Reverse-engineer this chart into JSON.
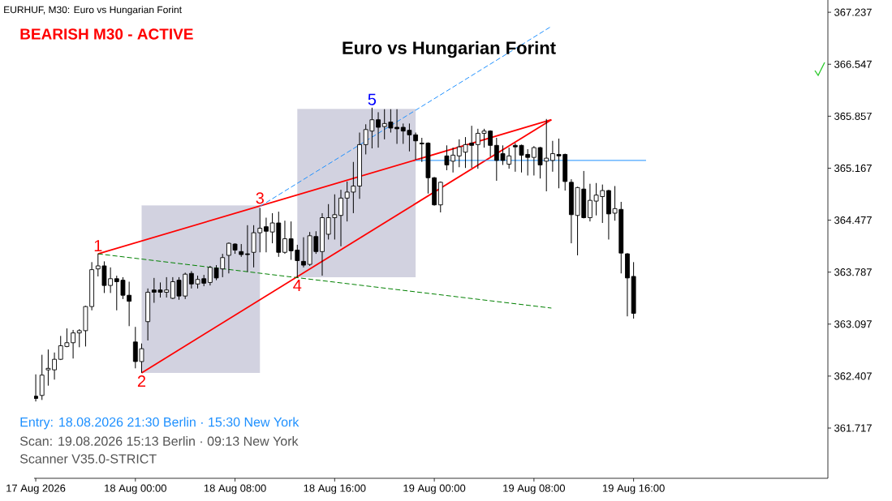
{
  "chart_data": {
    "type": "candlestick",
    "title": "Euro vs Hungarian Forint",
    "subtitle": "BEARISH M30 - ACTIVE",
    "x": [
      "2026-08-17T16:00",
      "2026-08-17T16:30",
      "2026-08-17T17:00",
      "2026-08-17T17:30",
      "2026-08-17T18:00",
      "2026-08-17T18:30",
      "2026-08-17T19:00",
      "2026-08-17T19:30",
      "2026-08-17T20:00",
      "2026-08-17T20:30",
      "2026-08-17T21:00",
      "2026-08-17T21:30",
      "2026-08-17T22:00",
      "2026-08-17T22:30",
      "2026-08-17T23:00",
      "2026-08-17T23:30",
      "2026-08-18T00:00",
      "2026-08-18T00:30",
      "2026-08-18T01:00",
      "2026-08-18T01:30",
      "2026-08-18T02:00",
      "2026-08-18T02:30",
      "2026-08-18T03:00",
      "2026-08-18T03:30",
      "2026-08-18T04:00",
      "2026-08-18T04:30",
      "2026-08-18T05:00",
      "2026-08-18T05:30",
      "2026-08-18T06:00",
      "2026-08-18T06:30",
      "2026-08-18T07:00",
      "2026-08-18T07:30",
      "2026-08-18T08:00",
      "2026-08-18T08:30",
      "2026-08-18T09:00",
      "2026-08-18T09:30",
      "2026-08-18T10:00",
      "2026-08-18T10:30",
      "2026-08-18T11:00",
      "2026-08-18T11:30",
      "2026-08-18T12:00",
      "2026-08-18T12:30",
      "2026-08-18T13:00",
      "2026-08-18T13:30",
      "2026-08-18T14:00",
      "2026-08-18T14:30",
      "2026-08-18T15:00",
      "2026-08-18T15:30",
      "2026-08-18T16:00",
      "2026-08-18T16:30",
      "2026-08-18T17:00",
      "2026-08-18T17:30",
      "2026-08-18T18:00",
      "2026-08-18T18:30",
      "2026-08-18T19:00",
      "2026-08-18T19:30",
      "2026-08-18T20:00",
      "2026-08-18T20:30",
      "2026-08-18T21:00",
      "2026-08-18T21:30",
      "2026-08-18T22:00",
      "2026-08-18T22:30",
      "2026-08-18T23:00",
      "2026-08-18T23:30",
      "2026-08-19T00:00",
      "2026-08-19T00:30",
      "2026-08-19T01:00",
      "2026-08-19T01:30",
      "2026-08-19T02:00",
      "2026-08-19T02:30",
      "2026-08-19T03:00",
      "2026-08-19T03:30",
      "2026-08-19T04:00",
      "2026-08-19T04:30",
      "2026-08-19T05:00",
      "2026-08-19T05:30",
      "2026-08-19T06:00",
      "2026-08-19T06:30",
      "2026-08-19T07:00",
      "2026-08-19T07:30",
      "2026-08-19T08:00",
      "2026-08-19T08:30",
      "2026-08-19T09:00",
      "2026-08-19T09:30",
      "2026-08-19T10:00",
      "2026-08-19T10:30",
      "2026-08-19T11:00",
      "2026-08-19T11:30",
      "2026-08-19T12:00",
      "2026-08-19T12:30",
      "2026-08-19T13:00",
      "2026-08-19T13:30",
      "2026-08-19T14:00",
      "2026-08-19T14:30",
      "2026-08-19T15:00",
      "2026-08-19T15:30",
      "2026-08-19T16:00"
    ],
    "ohlc": [
      [
        362.14,
        362.43,
        362.07,
        362.11
      ],
      [
        362.15,
        362.69,
        362.09,
        362.42
      ],
      [
        362.49,
        362.76,
        362.28,
        362.51
      ],
      [
        362.49,
        362.72,
        362.36,
        362.63
      ],
      [
        362.63,
        362.94,
        362.62,
        362.81
      ],
      [
        362.8,
        363.04,
        362.79,
        362.85
      ],
      [
        362.85,
        363.02,
        362.64,
        362.98
      ],
      [
        362.98,
        363.03,
        362.79,
        363.01
      ],
      [
        363.01,
        363.34,
        362.8,
        363.33
      ],
      [
        363.33,
        363.92,
        363.28,
        363.82
      ],
      [
        363.83,
        364.03,
        363.73,
        363.87
      ],
      [
        363.87,
        363.93,
        363.51,
        363.61
      ],
      [
        363.61,
        363.85,
        363.51,
        363.7
      ],
      [
        363.7,
        363.74,
        363.28,
        363.66
      ],
      [
        363.68,
        363.72,
        363.43,
        363.48
      ],
      [
        363.48,
        363.66,
        363.07,
        363.4
      ],
      [
        362.86,
        363.06,
        362.51,
        362.6
      ],
      [
        362.6,
        362.84,
        362.45,
        362.77
      ],
      [
        363.13,
        363.57,
        362.88,
        363.52
      ],
      [
        363.55,
        363.71,
        363.38,
        363.52
      ],
      [
        363.55,
        363.65,
        363.45,
        363.52
      ],
      [
        363.52,
        363.72,
        363.45,
        363.55
      ],
      [
        363.44,
        363.72,
        363.43,
        363.66
      ],
      [
        363.68,
        363.72,
        363.42,
        363.47
      ],
      [
        363.47,
        363.78,
        363.43,
        363.76
      ],
      [
        363.77,
        363.8,
        363.57,
        363.63
      ],
      [
        363.63,
        363.74,
        363.57,
        363.69
      ],
      [
        363.7,
        363.75,
        363.6,
        363.64
      ],
      [
        363.65,
        363.87,
        363.61,
        363.85
      ],
      [
        363.84,
        363.88,
        363.68,
        363.71
      ],
      [
        363.83,
        364.03,
        363.72,
        363.98
      ],
      [
        364.01,
        364.18,
        363.77,
        364.17
      ],
      [
        364.16,
        364.17,
        364.03,
        364.08
      ],
      [
        364.06,
        364.16,
        363.99,
        364.02
      ],
      [
        364.03,
        364.41,
        363.79,
        364.02
      ],
      [
        364.05,
        364.41,
        363.85,
        364.31
      ],
      [
        364.31,
        364.64,
        364.05,
        364.37
      ],
      [
        364.39,
        364.51,
        364.05,
        364.33
      ],
      [
        364.32,
        364.57,
        364.17,
        364.44
      ],
      [
        364.44,
        364.59,
        363.99,
        364.05
      ],
      [
        364.05,
        364.47,
        364.03,
        364.23
      ],
      [
        364.23,
        364.46,
        363.95,
        364.07
      ],
      [
        364.08,
        364.15,
        363.72,
        363.94
      ],
      [
        363.93,
        364.25,
        363.85,
        363.88
      ],
      [
        363.89,
        364.32,
        363.87,
        364.27
      ],
      [
        364.26,
        364.33,
        364.03,
        364.06
      ],
      [
        364.06,
        364.57,
        363.74,
        364.51
      ],
      [
        364.29,
        364.69,
        364.22,
        364.51
      ],
      [
        364.51,
        364.82,
        364.22,
        364.55
      ],
      [
        364.54,
        364.88,
        364.13,
        364.77
      ],
      [
        364.77,
        364.99,
        364.46,
        364.85
      ],
      [
        364.85,
        365.25,
        364.57,
        364.93
      ],
      [
        364.93,
        365.64,
        364.76,
        365.48
      ],
      [
        365.48,
        365.75,
        365.35,
        365.68
      ],
      [
        365.66,
        365.97,
        365.43,
        365.81
      ],
      [
        365.81,
        365.91,
        365.44,
        365.71
      ],
      [
        365.72,
        365.95,
        365.55,
        365.76
      ],
      [
        365.78,
        365.95,
        365.64,
        365.7
      ],
      [
        365.71,
        365.95,
        365.49,
        365.69
      ],
      [
        365.71,
        365.76,
        365.49,
        365.66
      ],
      [
        365.67,
        365.76,
        365.39,
        365.61
      ],
      [
        365.61,
        365.64,
        365.28,
        365.53
      ],
      [
        365.5,
        365.57,
        365.25,
        365.49
      ],
      [
        365.5,
        365.51,
        364.83,
        365.04
      ],
      [
        365.04,
        365.05,
        364.67,
        364.68
      ],
      [
        364.68,
        364.99,
        364.58,
        364.98
      ],
      [
        365.33,
        365.47,
        365.14,
        365.21
      ],
      [
        365.26,
        365.44,
        365.11,
        365.34
      ],
      [
        365.33,
        365.55,
        365.18,
        365.45
      ],
      [
        365.38,
        365.58,
        365.17,
        365.48
      ],
      [
        365.5,
        365.73,
        365.17,
        365.47
      ],
      [
        365.48,
        365.69,
        365.16,
        365.63
      ],
      [
        365.63,
        365.69,
        365.44,
        365.66
      ],
      [
        365.66,
        365.67,
        365.32,
        365.47
      ],
      [
        365.47,
        365.57,
        365.0,
        365.27
      ],
      [
        365.36,
        365.47,
        365.21,
        365.27
      ],
      [
        365.22,
        365.44,
        365.16,
        365.33
      ],
      [
        365.47,
        365.5,
        365.12,
        365.45
      ],
      [
        365.47,
        365.48,
        365.11,
        365.34
      ],
      [
        365.35,
        365.42,
        365.07,
        365.31
      ],
      [
        365.31,
        365.46,
        365.07,
        365.44
      ],
      [
        365.44,
        365.45,
        365.03,
        365.21
      ],
      [
        365.26,
        365.82,
        364.86,
        365.3
      ],
      [
        365.27,
        365.53,
        365.12,
        365.36
      ],
      [
        365.35,
        365.56,
        364.9,
        365.33
      ],
      [
        365.35,
        365.36,
        364.87,
        364.99
      ],
      [
        364.98,
        365.02,
        364.17,
        364.55
      ],
      [
        364.54,
        364.92,
        364.01,
        364.91
      ],
      [
        364.89,
        365.13,
        364.5,
        364.51
      ],
      [
        364.51,
        364.96,
        364.46,
        364.74
      ],
      [
        364.73,
        364.97,
        364.54,
        364.81
      ],
      [
        364.79,
        364.95,
        364.44,
        364.87
      ],
      [
        364.87,
        364.88,
        364.22,
        364.56
      ],
      [
        364.57,
        364.93,
        364.47,
        364.63
      ],
      [
        364.62,
        364.72,
        363.77,
        364.04
      ],
      [
        364.03,
        364.04,
        363.2,
        363.71
      ],
      [
        363.73,
        363.92,
        363.17,
        363.24
      ]
    ],
    "series": [
      {
        "type": "line",
        "color": "#d2d2e0",
        "x": [
          "2026-08-18T00:30",
          "2026-08-18T10:00"
        ],
        "values": [
          364.67,
          364.67
        ],
        "lower": [
          362.45,
          362.45
        ],
        "upper": [
          364.67,
          364.67
        ]
      },
      {
        "type": "line",
        "color": "#d2d2e0",
        "x": [
          "2026-08-18T13:00",
          "2026-08-18T22:30"
        ],
        "values": [
          365.95,
          365.95
        ],
        "lower": [
          363.72,
          363.72
        ],
        "upper": [
          365.95,
          365.95
        ]
      },
      {
        "type": "line",
        "color": "#ff0000",
        "line_style": "solid",
        "x": [
          "2026-08-17T21:00",
          "2026-08-19T09:24"
        ],
        "values": [
          364.03,
          365.81
        ]
      },
      {
        "type": "line",
        "color": "#ff0000",
        "line_style": "solid",
        "x": [
          "2026-08-18T00:30",
          "2026-08-19T09:24"
        ],
        "values": [
          362.45,
          365.81
        ]
      },
      {
        "type": "line",
        "color": "#1e90ff",
        "line_style": "dashed",
        "x": [
          "2026-08-18T10:00",
          "2026-08-19T09:24"
        ],
        "values": [
          364.66,
          367.05
        ]
      },
      {
        "type": "line",
        "color": "#008000",
        "line_style": "dashed",
        "x": [
          "2026-08-17T21:00",
          "2026-08-19T09:24"
        ],
        "values": [
          364.03,
          363.31
        ]
      },
      {
        "type": "line",
        "color": "#1e90ff",
        "line_style": "solid",
        "x": [
          "2026-08-18T22:30",
          "2026-08-19T17:00"
        ],
        "values": [
          365.27,
          365.27
        ]
      }
    ],
    "annotations": [
      {
        "text": "1",
        "x": "2026-08-17T21:00",
        "y": 364.03
      },
      {
        "text": "2",
        "x": "2026-08-18T00:30",
        "y": 362.45
      },
      {
        "text": "3",
        "x": "2026-08-18T10:00",
        "y": 364.66
      },
      {
        "text": "4",
        "x": "2026-08-18T13:00",
        "y": 363.72
      },
      {
        "text": "5",
        "x": "2026-08-18T19:00",
        "y": 365.97
      },
      "EURHUF, M30:  Euro vs Hungarian Forint",
      "Entry: 18.08.2026  21:30 Berlin · 15:30 New York",
      "Scan:  19.08.2026  15:13 Berlin · 09:13 New York",
      "Scanner V35.0-STRICT"
    ],
    "xlim": [
      "2026-08-17T15:52",
      "2026-08-20T07:36"
    ],
    "ylim": [
      361.05,
      367.4
    ],
    "xticks": [
      {
        "value": "2026-08-17T16:00",
        "label": "17 Aug 2026"
      },
      {
        "value": "2026-08-18T00:00",
        "label": "18 Aug 00:00"
      },
      {
        "value": "2026-08-18T08:00",
        "label": "18 Aug 08:00"
      },
      {
        "value": "2026-08-18T16:00",
        "label": "18 Aug 16:00"
      },
      {
        "value": "2026-08-19T00:00",
        "label": "19 Aug 00:00"
      },
      {
        "value": "2026-08-19T08:00",
        "label": "19 Aug 08:00"
      },
      {
        "value": "2026-08-19T16:00",
        "label": "19 Aug 16:00"
      }
    ],
    "yticks": [
      361.717,
      362.407,
      363.097,
      363.787,
      364.477,
      365.167,
      365.857,
      366.547,
      367.237
    ]
  }
}
